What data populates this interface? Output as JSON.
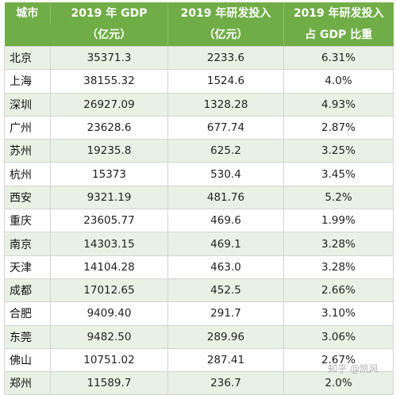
{
  "header": {
    "city": "城市",
    "gdp_line1": "2019 年 GDP",
    "gdp_line2": "（亿元）",
    "rd_line1": "2019 年研发投入",
    "rd_line2": "（亿元）",
    "ratio_line1": "2019 年研发投入",
    "ratio_line2": "占 GDP 比重"
  },
  "rows": [
    {
      "city": "北京",
      "gdp": "35371.3",
      "rd": "2233.6",
      "ratio": "6.31%"
    },
    {
      "city": "上海",
      "gdp": "38155.32",
      "rd": "1524.6",
      "ratio": "4.0%"
    },
    {
      "city": "深圳",
      "gdp": "26927.09",
      "rd": "1328.28",
      "ratio": "4.93%"
    },
    {
      "city": "广州",
      "gdp": "23628.6",
      "rd": "677.74",
      "ratio": "2.87%"
    },
    {
      "city": "苏州",
      "gdp": "19235.8",
      "rd": "625.2",
      "ratio": "3.25%"
    },
    {
      "city": "杭州",
      "gdp": "15373",
      "rd": "530.4",
      "ratio": "3.45%"
    },
    {
      "city": "西安",
      "gdp": "9321.19",
      "rd": "481.76",
      "ratio": "5.2%"
    },
    {
      "city": "重庆",
      "gdp": "23605.77",
      "rd": "469.6",
      "ratio": "1.99%"
    },
    {
      "city": "南京",
      "gdp": "14303.15",
      "rd": "469.1",
      "ratio": "3.28%"
    },
    {
      "city": "天津",
      "gdp": "14104.28",
      "rd": "463.0",
      "ratio": "3.28%"
    },
    {
      "city": "成都",
      "gdp": "17012.65",
      "rd": "452.5",
      "ratio": "2.66%"
    },
    {
      "city": "合肥",
      "gdp": "9409.40",
      "rd": "291.7",
      "ratio": "3.10%"
    },
    {
      "city": "东莞",
      "gdp": "9482.50",
      "rd": "289.96",
      "ratio": "3.06%"
    },
    {
      "city": "佛山",
      "gdp": "10751.02",
      "rd": "287.41",
      "ratio": "2.67%"
    },
    {
      "city": "郑州",
      "gdp": "11589.7",
      "rd": "236.7",
      "ratio": "2.0%"
    }
  ],
  "watermark": "知乎 @凯风",
  "colors": {
    "header_bg": "#70ad47",
    "stripe_bg": "#e9f1e4",
    "border": "#d3d3d3"
  }
}
